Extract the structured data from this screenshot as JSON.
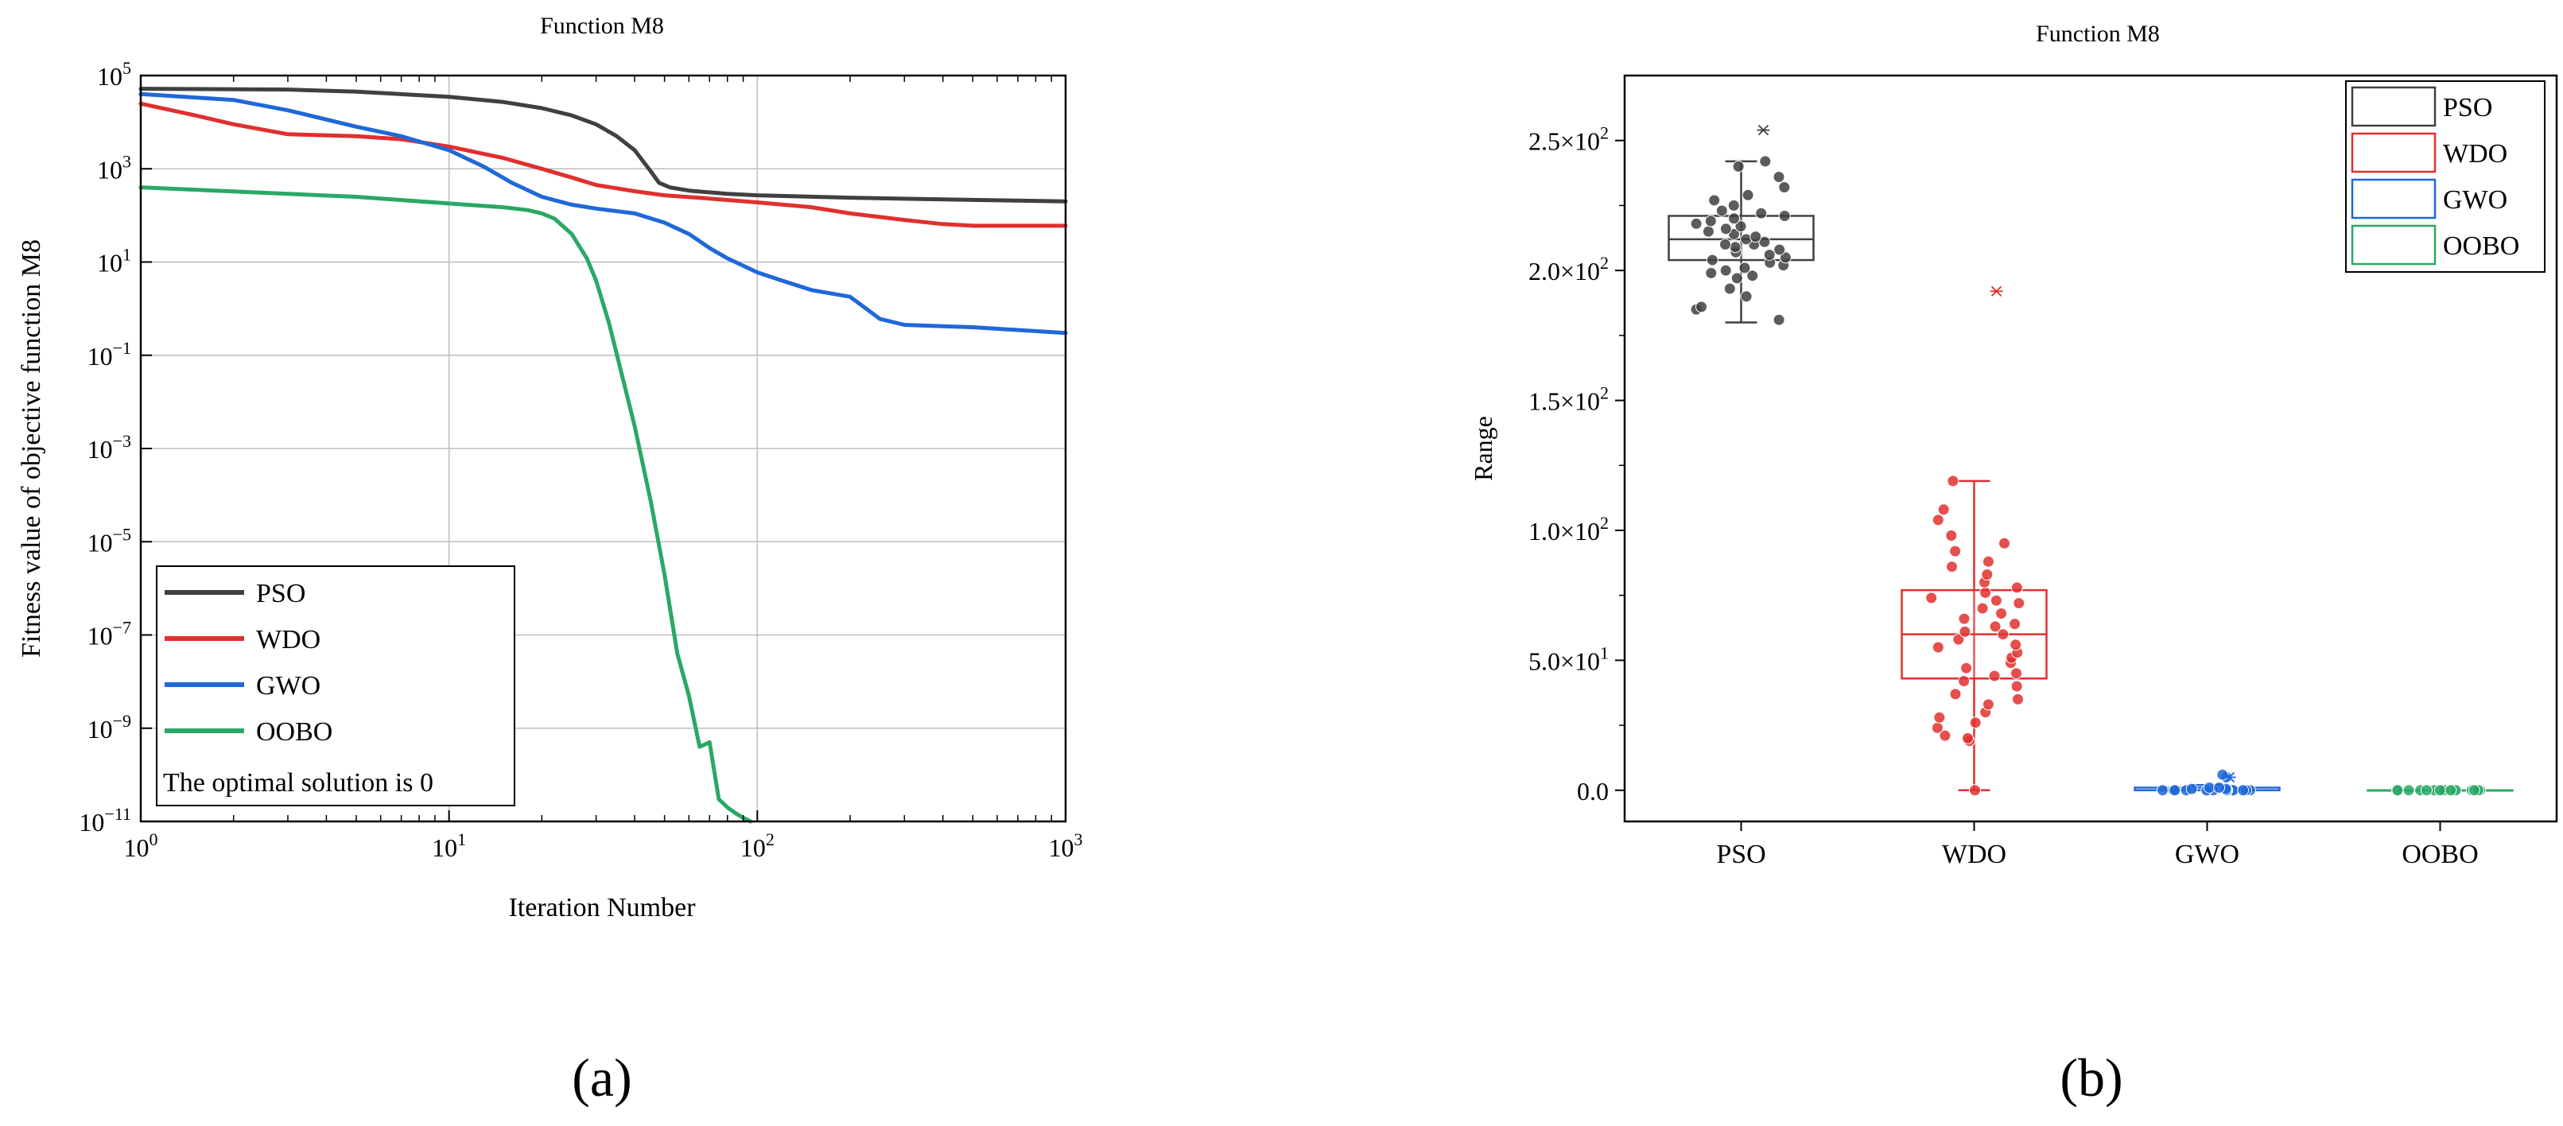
{
  "figure": {
    "panel_a_label": "(a)",
    "panel_b_label": "(b)"
  },
  "chart_data": [
    {
      "type": "line",
      "title": "Function M8",
      "xlabel": "Iteration Number",
      "ylabel": "Fitness value of objective function M8",
      "xscale": "log",
      "yscale": "log",
      "xlim": [
        1,
        1000
      ],
      "ylim": [
        1e-11,
        100000
      ],
      "x_ticks": [
        {
          "value": 1,
          "base": "10",
          "exp": "0"
        },
        {
          "value": 10,
          "base": "10",
          "exp": "1"
        },
        {
          "value": 100,
          "base": "10",
          "exp": "2"
        },
        {
          "value": 1000,
          "base": "10",
          "exp": "3"
        }
      ],
      "y_ticks": [
        {
          "value": 1e-11,
          "base": "10",
          "exp": "−11"
        },
        {
          "value": 1e-09,
          "base": "10",
          "exp": "−9"
        },
        {
          "value": 1e-07,
          "base": "10",
          "exp": "−7"
        },
        {
          "value": 1e-05,
          "base": "10",
          "exp": "−5"
        },
        {
          "value": 0.001,
          "base": "10",
          "exp": "−3"
        },
        {
          "value": 0.1,
          "base": "10",
          "exp": "−1"
        },
        {
          "value": 10,
          "base": "10",
          "exp": "1"
        },
        {
          "value": 1000,
          "base": "10",
          "exp": "3"
        },
        {
          "value": 100000,
          "base": "10",
          "exp": "5"
        }
      ],
      "grid": true,
      "legend_position": "bottom-left",
      "annotation": "The optimal solution is 0",
      "series": [
        {
          "name": "PSO",
          "color": "#404040",
          "x": [
            1,
            3,
            5,
            10,
            15,
            20,
            25,
            30,
            35,
            40,
            45,
            48,
            52,
            60,
            80,
            100,
            200,
            500,
            1000
          ],
          "y": [
            52000,
            50000,
            45000,
            35000,
            27000,
            20000,
            14000,
            9000,
            5000,
            2500,
            900,
            500,
            400,
            340,
            290,
            270,
            240,
            215,
            200
          ]
        },
        {
          "name": "WDO",
          "color": "#e0302e",
          "x": [
            1,
            1.5,
            2,
            3,
            5,
            7,
            10,
            15,
            20,
            25,
            30,
            40,
            50,
            70,
            100,
            150,
            200,
            300,
            400,
            500,
            1000
          ],
          "y": [
            25000,
            14000,
            9000,
            5500,
            5000,
            4300,
            3000,
            1700,
            1000,
            650,
            450,
            330,
            270,
            230,
            190,
            150,
            110,
            80,
            65,
            60,
            60
          ]
        },
        {
          "name": "GWO",
          "color": "#1f68d8",
          "x": [
            1,
            2,
            3,
            5,
            7,
            10,
            13,
            16,
            20,
            25,
            30,
            40,
            50,
            60,
            70,
            80,
            100,
            120,
            150,
            200,
            250,
            300,
            400,
            500,
            1000
          ],
          "y": [
            40000,
            30000,
            18000,
            8000,
            5000,
            2500,
            1100,
            500,
            250,
            170,
            140,
            110,
            70,
            40,
            20,
            12,
            6,
            4,
            2.5,
            1.8,
            0.6,
            0.45,
            0.42,
            0.4,
            0.3
          ]
        },
        {
          "name": "OOBO",
          "color": "#2aa865",
          "x": [
            1,
            3,
            5,
            10,
            15,
            18,
            20,
            22,
            25,
            28,
            30,
            33,
            36,
            40,
            45,
            50,
            55,
            60,
            65,
            70,
            75,
            80,
            85,
            90,
            95
          ],
          "y": [
            400,
            290,
            250,
            180,
            150,
            130,
            110,
            85,
            40,
            12,
            4,
            0.5,
            0.05,
            0.003,
            8e-05,
            2e-06,
            4e-08,
            5e-09,
            4e-10,
            5e-10,
            3e-11,
            2e-11,
            1.5e-11,
            1.2e-11,
            1e-11
          ]
        }
      ]
    },
    {
      "type": "box",
      "title": "Function M8",
      "xlabel": "",
      "ylabel": "Range",
      "ylim": [
        -12,
        275
      ],
      "categories": [
        "PSO",
        "WDO",
        "GWO",
        "OOBO"
      ],
      "y_ticks": [
        {
          "value": 0,
          "label": "0.0"
        },
        {
          "value": 50,
          "label": "5.0×10",
          "exp": "1"
        },
        {
          "value": 100,
          "label": "1.0×10",
          "exp": "2"
        },
        {
          "value": 150,
          "label": "1.5×10",
          "exp": "2"
        },
        {
          "value": 200,
          "label": "2.0×10",
          "exp": "2"
        },
        {
          "value": 250,
          "label": "2.5×10",
          "exp": "2"
        }
      ],
      "legend_position": "top-right",
      "series": [
        {
          "name": "PSO",
          "color": "#404040",
          "q1": 204,
          "median": 212,
          "q3": 221,
          "whisker_low": 180,
          "whisker_high": 242,
          "outliers": [
            254
          ],
          "points": [
            185,
            181,
            186,
            190,
            193,
            197,
            198,
            199,
            200,
            201,
            202,
            203,
            204,
            205,
            206,
            207,
            208,
            209,
            210,
            210,
            211,
            212,
            213,
            214,
            215,
            216,
            217,
            218,
            219,
            220,
            221,
            222,
            223,
            225,
            227,
            229,
            232,
            236,
            240,
            242
          ]
        },
        {
          "name": "WDO",
          "color": "#e0302e",
          "q1": 43,
          "median": 60,
          "q3": 77,
          "whisker_low": 0,
          "whisker_high": 119,
          "outliers": [
            192
          ],
          "points": [
            0,
            19,
            20,
            21,
            24,
            26,
            28,
            30,
            33,
            35,
            37,
            40,
            42,
            44,
            45,
            47,
            49,
            51,
            53,
            55,
            56,
            58,
            60,
            61,
            63,
            64,
            66,
            68,
            70,
            72,
            73,
            74,
            76,
            78,
            80,
            83,
            86,
            88,
            92,
            95,
            98,
            104,
            108,
            119
          ]
        },
        {
          "name": "GWO",
          "color": "#1f68d8",
          "q1": 0,
          "median": 0,
          "q3": 1,
          "whisker_low": 0,
          "whisker_high": 2,
          "outliers": [
            5
          ],
          "points": [
            0,
            0,
            0,
            0,
            0,
            0,
            0,
            0,
            0,
            0,
            0,
            0,
            0,
            0,
            0,
            0,
            0.5,
            0.5,
            1,
            1,
            5,
            6
          ]
        },
        {
          "name": "OOBO",
          "color": "#2aa865",
          "q1": 0,
          "median": 0,
          "q3": 0,
          "whisker_low": 0,
          "whisker_high": 0,
          "outliers": [],
          "points": [
            0,
            0,
            0,
            0,
            0,
            0,
            0,
            0,
            0,
            0,
            0,
            0,
            0,
            0,
            0,
            0,
            0,
            0,
            0,
            0
          ]
        }
      ]
    }
  ]
}
